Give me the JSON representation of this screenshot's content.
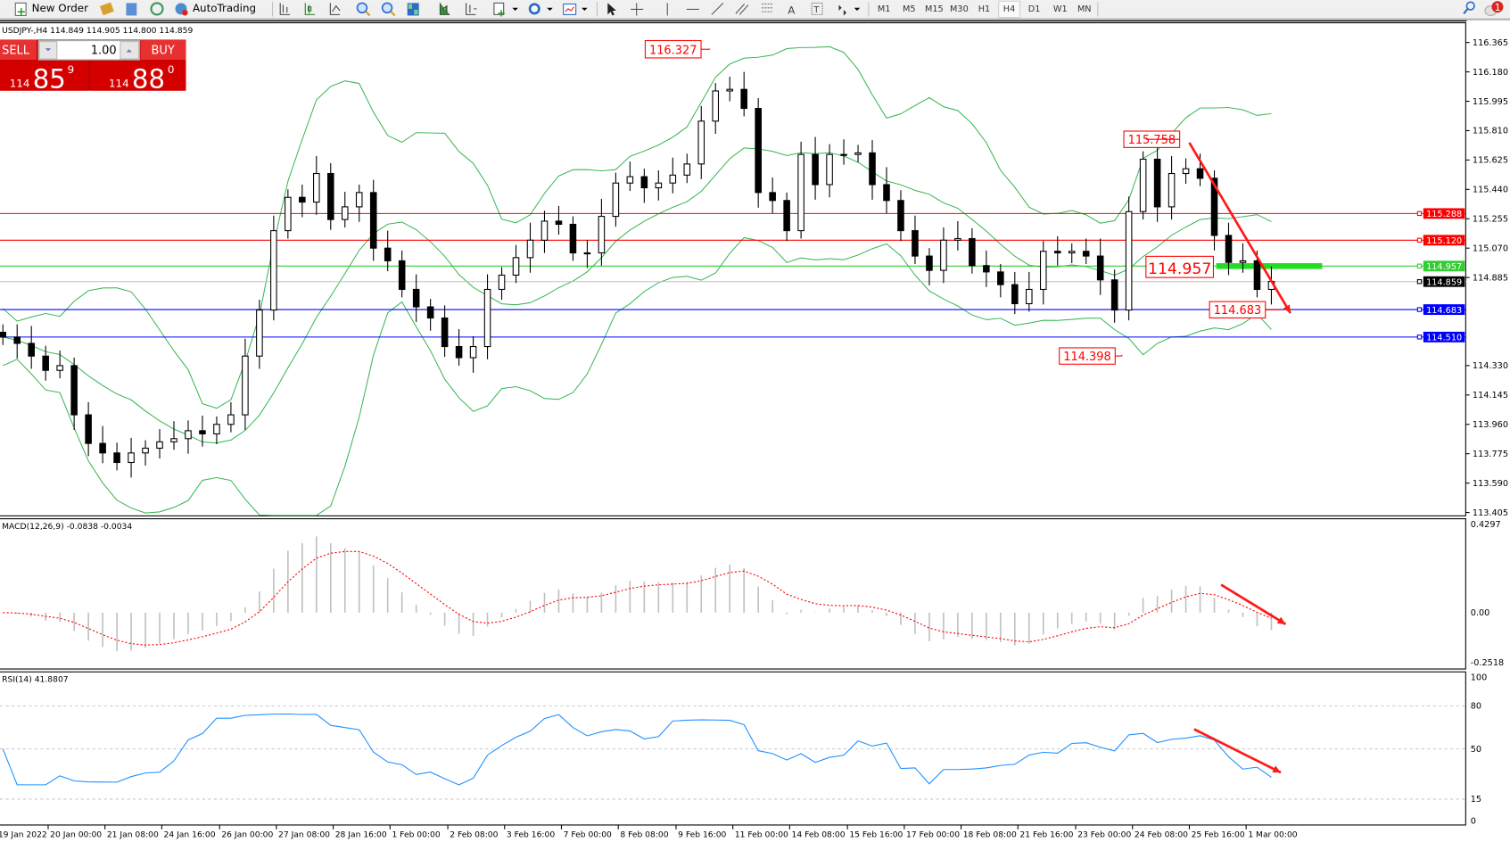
{
  "toolbar": {
    "new_order": "New Order",
    "auto_trading": "AutoTrading",
    "timeframes": [
      "M1",
      "M5",
      "M15",
      "M30",
      "H1",
      "H4",
      "D1",
      "W1",
      "MN"
    ],
    "active_timeframe": "H4",
    "notification_count": "1",
    "icons": [
      "new-order-icon",
      "market-watch-icon",
      "navigator-icon",
      "signals-icon",
      "autotrading-icon",
      "bar-chart-icon",
      "candlestick-icon",
      "line-chart-icon",
      "zoom-in-icon",
      "zoom-out-icon",
      "tile-windows-icon",
      "auto-scroll-icon",
      "chart-shift-icon",
      "indicators-icon",
      "periods-icon",
      "templates-icon",
      "cursor-icon",
      "crosshair-icon",
      "vertical-line-icon",
      "horizontal-line-icon",
      "trendline-icon",
      "equidistant-channel-icon",
      "fibonacci-icon",
      "text-icon",
      "text-label-icon",
      "arrows-icon",
      "search-icon",
      "notification-icon"
    ]
  },
  "chart": {
    "header": "USDJPY-,H4  114.849 114.905 114.800 114.859",
    "symbol": "USDJPY-",
    "period": "H4"
  },
  "one_click": {
    "sell_label": "SELL",
    "buy_label": "BUY",
    "lot": "1.00",
    "sell_big": "114",
    "sell_main": "85",
    "sell_sup": "9",
    "buy_big": "114",
    "buy_main": "88",
    "buy_sup": "0",
    "color": "#d40000"
  },
  "chart_data": [
    {
      "type": "candlestick",
      "title": "USDJPY-,H4",
      "ylim": [
        113.405,
        116.365
      ],
      "y_ticks": [
        "116.365",
        "116.180",
        "115.995",
        "115.810",
        "115.625",
        "115.440",
        "115.255",
        "115.070",
        "114.885",
        "114.330",
        "114.145",
        "113.960",
        "113.775",
        "113.590",
        "113.405"
      ],
      "x_ticks": [
        "19 Jan 2022",
        "20 Jan 00:00",
        "21 Jan 08:00",
        "24 Jan 16:00",
        "26 Jan 00:00",
        "27 Jan 08:00",
        "28 Jan 16:00",
        "1 Feb 00:00",
        "2 Feb 08:00",
        "3 Feb 16:00",
        "7 Feb 00:00",
        "8 Feb 08:00",
        "9 Feb 16:00",
        "11 Feb 00:00",
        "14 Feb 08:00",
        "15 Feb 16:00",
        "17 Feb 00:00",
        "18 Feb 08:00",
        "21 Feb 16:00",
        "23 Feb 00:00",
        "24 Feb 08:00",
        "25 Feb 16:00",
        "1 Mar 00:00"
      ],
      "closes": [
        114.51,
        114.47,
        114.39,
        114.3,
        114.33,
        114.02,
        113.84,
        113.78,
        113.72,
        113.78,
        113.81,
        113.85,
        113.87,
        113.92,
        113.9,
        113.96,
        114.02,
        114.39,
        114.68,
        115.18,
        115.39,
        115.36,
        115.54,
        115.25,
        115.33,
        115.42,
        115.07,
        114.99,
        114.81,
        114.7,
        114.63,
        114.45,
        114.38,
        114.45,
        114.81,
        114.9,
        115.01,
        115.12,
        115.24,
        115.22,
        115.04,
        115.04,
        115.27,
        115.48,
        115.52,
        115.45,
        115.48,
        115.53,
        115.6,
        115.87,
        116.06,
        116.07,
        115.95,
        115.42,
        115.37,
        115.18,
        115.66,
        115.47,
        115.66,
        115.66,
        115.67,
        115.47,
        115.37,
        115.18,
        115.02,
        114.93,
        115.12,
        115.13,
        114.96,
        114.92,
        114.84,
        114.72,
        114.81,
        115.05,
        115.04,
        115.05,
        115.02,
        114.87,
        114.68,
        115.3,
        115.63,
        115.33,
        115.54,
        115.57,
        115.51,
        115.15,
        114.98,
        114.99,
        114.81,
        114.86
      ],
      "overlay": "Bollinger Bands",
      "overlay_color": "#2db34a",
      "levels": [
        {
          "value": "115.288",
          "color": "#ff0000"
        },
        {
          "value": "115.120",
          "color": "#ff0000"
        },
        {
          "value": "114.957",
          "color": "#33cc33"
        },
        {
          "value": "114.859",
          "color": "#000000"
        },
        {
          "value": "114.683",
          "color": "#0000ff"
        },
        {
          "value": "114.510",
          "color": "#0000ff"
        }
      ],
      "annotations": [
        "116.327",
        "115.758",
        "114.957",
        "114.683",
        "114.398"
      ],
      "annotation_color": "#ff0000"
    },
    {
      "type": "bar",
      "title": "MACD(12,26,9) -0.0838 -0.0034",
      "label_visible": "ACD(12,26,9) -0.0838 -0.0034",
      "ylim": [
        -0.2518,
        0.4297
      ],
      "y_ticks": [
        "0.4297",
        "0.00",
        "-0.2518"
      ],
      "histogram_color": "#c0c0c0",
      "signal_color": "#ff0000"
    },
    {
      "type": "line",
      "title": "RSI(14) 41.8807",
      "label_visible": "SI(14) 41.8807",
      "ylim": [
        0,
        100
      ],
      "y_ticks": [
        "100",
        "80",
        "50",
        "15",
        "0"
      ],
      "line_color": "#1e90ff"
    }
  ]
}
